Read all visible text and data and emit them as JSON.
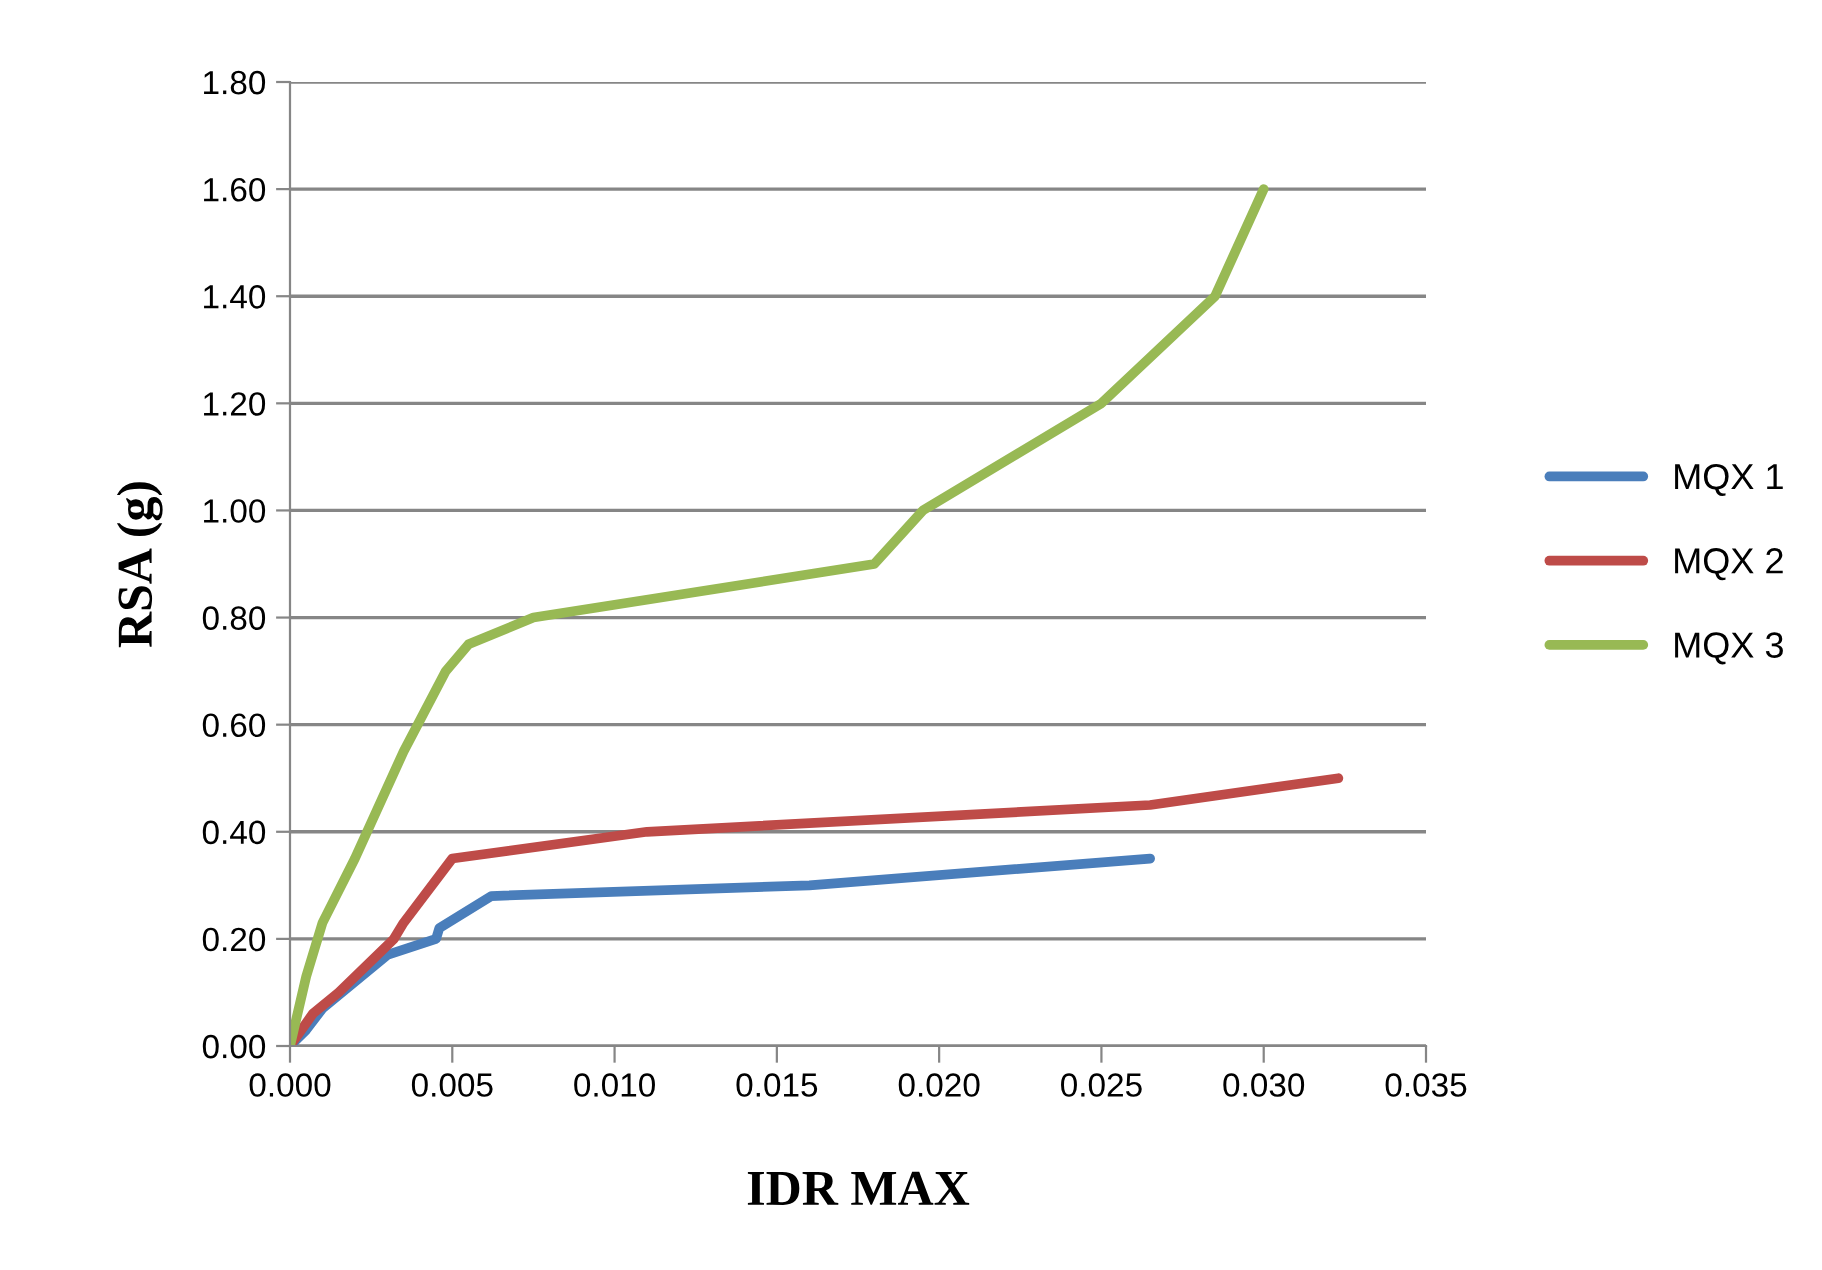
{
  "chart_data": {
    "type": "line",
    "xlabel": "IDR MAX",
    "ylabel": "RSA (g)",
    "xlim": [
      0,
      0.035
    ],
    "xticks": [
      {
        "value": 0,
        "label": "0.000"
      },
      {
        "value": 0.005,
        "label": "0.005"
      },
      {
        "value": 0.01,
        "label": "0.010"
      },
      {
        "value": 0.015,
        "label": "0.015"
      },
      {
        "value": 0.02,
        "label": "0.020"
      },
      {
        "value": 0.025,
        "label": "0.025"
      },
      {
        "value": 0.03,
        "label": "0.030"
      },
      {
        "value": 0.035,
        "label": "0.035"
      }
    ],
    "ylim": [
      0,
      1.8
    ],
    "yticks": [
      {
        "value": 0,
        "label": "0.00"
      },
      {
        "value": 0.2,
        "label": "0.20"
      },
      {
        "value": 0.4,
        "label": "0.40"
      },
      {
        "value": 0.6,
        "label": "0.60"
      },
      {
        "value": 0.8,
        "label": "0.80"
      },
      {
        "value": 1.0,
        "label": "1.00"
      },
      {
        "value": 1.2,
        "label": "1.20"
      },
      {
        "value": 1.4,
        "label": "1.40"
      },
      {
        "value": 1.6,
        "label": "1.60"
      },
      {
        "value": 1.8,
        "label": "1.80"
      }
    ],
    "grid": "y",
    "legend": "right",
    "marker": "none",
    "line_style": "solid",
    "series": [
      {
        "name": "MQX 1",
        "color": "#4a7ebb",
        "x": [
          0,
          0.0005,
          0.001,
          0.003,
          0.0045,
          0.0046,
          0.0062,
          0.016,
          0.0265
        ],
        "values": [
          0,
          0.03,
          0.07,
          0.17,
          0.2,
          0.22,
          0.28,
          0.3,
          0.35
        ]
      },
      {
        "name": "MQX 2",
        "color": "#be4b48",
        "x": [
          0,
          0.0007,
          0.0015,
          0.0032,
          0.0035,
          0.005,
          0.011,
          0.0265,
          0.0323
        ],
        "values": [
          0,
          0.06,
          0.1,
          0.2,
          0.23,
          0.35,
          0.4,
          0.45,
          0.5
        ]
      },
      {
        "name": "MQX 3",
        "color": "#98b954",
        "x": [
          0,
          0.0005,
          0.001,
          0.002,
          0.0035,
          0.0048,
          0.0055,
          0.0075,
          0.018,
          0.0195,
          0.025,
          0.0285,
          0.03
        ],
        "values": [
          0,
          0.13,
          0.23,
          0.35,
          0.55,
          0.7,
          0.75,
          0.8,
          0.9,
          1.0,
          1.2,
          1.4,
          1.6
        ]
      }
    ]
  }
}
